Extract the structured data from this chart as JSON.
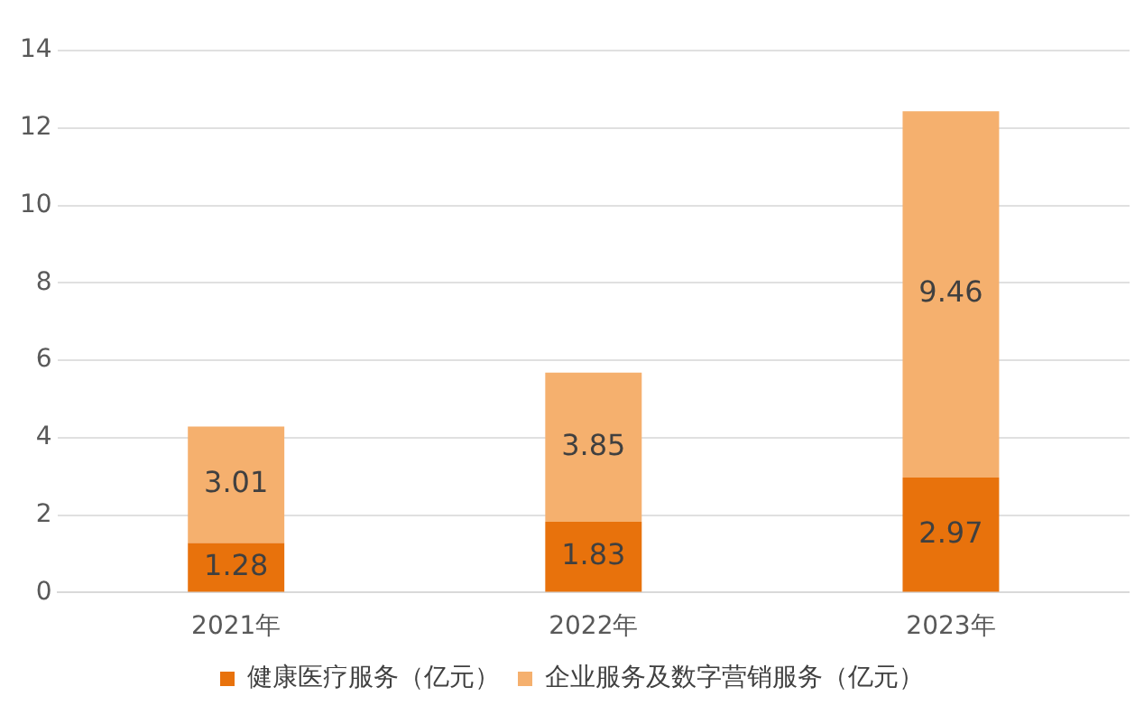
{
  "chart_data": {
    "type": "bar",
    "stacked": true,
    "categories": [
      "2021年",
      "2022年",
      "2023年"
    ],
    "series": [
      {
        "name": "健康医疗服务（亿元）",
        "color": "#e8720c",
        "values": [
          1.28,
          1.83,
          2.97
        ]
      },
      {
        "name": "企业服务及数字营销服务（亿元）",
        "color": "#f5b06e",
        "values": [
          3.01,
          3.85,
          9.46
        ]
      }
    ],
    "ylim": [
      0,
      14
    ],
    "yticks": [
      0,
      2,
      4,
      6,
      8,
      10,
      12,
      14
    ],
    "grid": "y",
    "legend": "bottom",
    "data_labels": true
  }
}
